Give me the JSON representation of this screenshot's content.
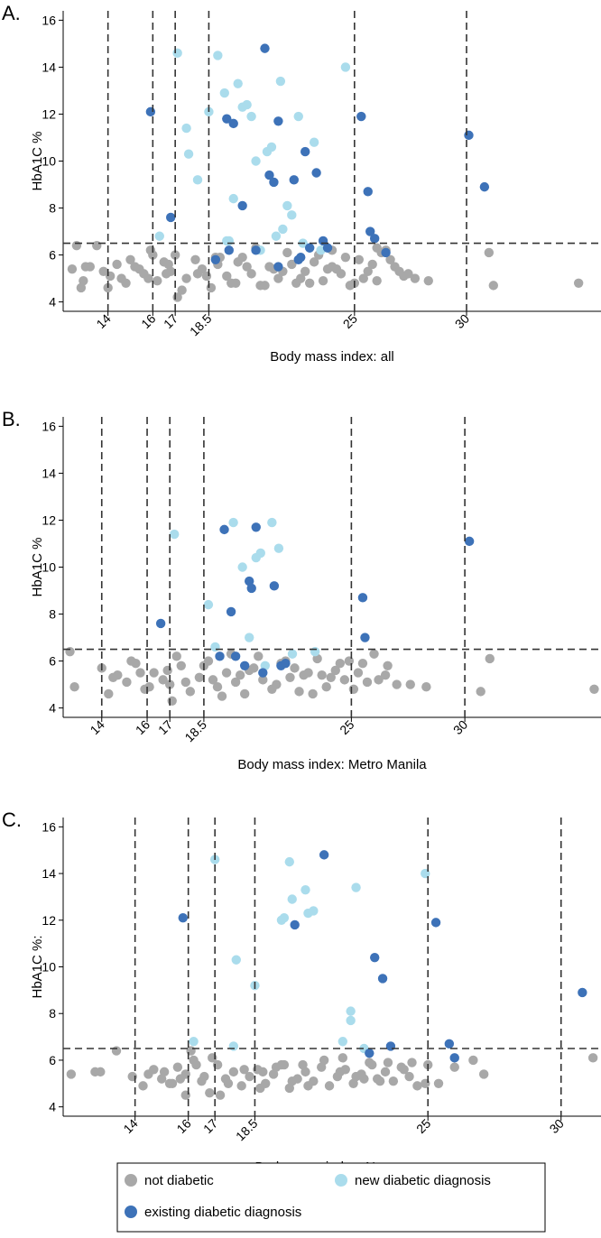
{
  "chart_data": [
    {
      "type": "scatter",
      "panel_label": "A.",
      "xlabel": "Body mass index: all",
      "ylabel": "HbA1C %",
      "xticks": [
        14,
        16,
        17,
        18.5,
        25,
        30
      ],
      "yticks": [
        4,
        6,
        8,
        10,
        12,
        14,
        16
      ],
      "xlim": [
        12,
        36
      ],
      "ylim": [
        3.6,
        16.4
      ],
      "grid": false,
      "reference_lines": {
        "x": [
          14,
          16,
          17,
          18.5,
          25,
          30
        ],
        "y": [
          6.5
        ]
      },
      "series": [
        {
          "name": "not diabetic",
          "color": "#a8a8a8",
          "x": [
            12.4,
            12.6,
            12.9,
            13.2,
            13.5,
            14.1,
            14.4,
            14.8,
            15.2,
            15.6,
            15.9,
            16.2,
            16.5,
            16.8,
            17.1,
            17.5,
            17.9,
            18.2,
            18.6,
            18.9,
            19.3,
            19.7,
            20.0,
            20.4,
            20.8,
            21.2,
            21.6,
            22.0,
            22.4,
            22.8,
            23.2,
            23.6,
            24.0,
            24.4,
            24.8,
            25.2,
            25.6,
            26.0,
            26.4,
            26.8,
            27.2,
            27.7,
            28.3,
            31.0,
            31.2,
            35.0,
            14.0,
            14.6,
            15.4,
            16.0,
            16.7,
            17.3,
            18.0,
            18.8,
            19.5,
            20.2,
            21.0,
            21.8,
            22.6,
            23.4,
            24.2,
            25.0,
            25.8,
            26.6,
            27.4,
            13.8,
            15.0,
            17.0,
            19.0,
            21.4,
            23.0,
            24.6,
            26.2,
            15.8,
            18.4,
            20.6,
            22.2,
            24.0,
            25.4,
            27.0,
            16.6,
            19.8,
            23.8,
            13.0,
            12.8,
            26.0
          ],
          "y": [
            5.4,
            6.4,
            4.9,
            5.5,
            6.4,
            5.1,
            5.6,
            4.8,
            5.5,
            5.2,
            6.2,
            4.9,
            5.7,
            5.3,
            4.2,
            5.0,
            5.8,
            5.4,
            4.6,
            5.6,
            5.1,
            4.8,
            5.9,
            5.2,
            4.7,
            5.5,
            5.0,
            6.1,
            4.8,
            5.3,
            5.7,
            4.9,
            5.5,
            5.2,
            4.7,
            5.8,
            5.3,
            4.9,
            6.2,
            5.5,
            5.1,
            5.0,
            4.9,
            6.1,
            4.7,
            4.8,
            4.6,
            5.0,
            5.4,
            6.0,
            5.6,
            4.5,
            5.2,
            5.9,
            4.8,
            5.5,
            4.7,
            5.3,
            5.0,
            6.0,
            5.4,
            4.8,
            5.6,
            5.8,
            5.2,
            5.3,
            5.8,
            6.0,
            5.9,
            5.4,
            4.8,
            5.9,
            6.1,
            5.0,
            5.1,
            6.3,
            5.6,
            6.2,
            5.0,
            5.3,
            5.2,
            5.7,
            5.4,
            5.5,
            4.6,
            6.3
          ]
        },
        {
          "name": "new diabetic diagnosis",
          "color": "#aadcec",
          "x": [
            17.1,
            16.3,
            17.5,
            17.6,
            18.0,
            18.5,
            18.9,
            19.2,
            19.4,
            19.6,
            19.8,
            20.0,
            20.2,
            20.4,
            20.6,
            20.8,
            21.1,
            21.3,
            21.5,
            21.7,
            22.0,
            22.2,
            22.5,
            22.7,
            23.0,
            23.2,
            23.5,
            24.6,
            19.3,
            21.8
          ],
          "y": [
            14.6,
            6.8,
            11.4,
            10.3,
            9.2,
            12.1,
            14.5,
            12.9,
            6.6,
            8.4,
            13.3,
            12.3,
            12.4,
            11.9,
            10.0,
            6.2,
            10.4,
            10.6,
            6.8,
            13.4,
            8.1,
            7.7,
            11.9,
            6.5,
            6.3,
            10.8,
            6.2,
            14.0,
            6.6,
            7.1
          ]
        },
        {
          "name": "existing diabetic diagnosis",
          "color": "#3d72b8",
          "x": [
            15.9,
            16.8,
            19.3,
            19.4,
            19.6,
            20.0,
            21.0,
            21.2,
            21.4,
            21.6,
            22.3,
            22.5,
            22.8,
            23.0,
            23.3,
            23.6,
            25.3,
            25.6,
            25.7,
            25.9,
            26.4,
            30.1,
            30.8,
            18.8,
            21.6,
            20.6,
            22.6,
            23.8
          ],
          "y": [
            12.1,
            7.6,
            11.8,
            6.2,
            11.6,
            8.1,
            14.8,
            9.4,
            9.1,
            11.7,
            9.2,
            5.8,
            10.4,
            6.3,
            9.5,
            6.6,
            11.9,
            8.7,
            7.0,
            6.7,
            6.1,
            11.1,
            8.9,
            5.8,
            5.5,
            6.2,
            5.9,
            6.3
          ]
        }
      ]
    },
    {
      "type": "scatter",
      "panel_label": "B.",
      "xlabel": "Body mass index: Metro Manila",
      "ylabel": "HbA1C %",
      "xticks": [
        14,
        16,
        17,
        18.5,
        25,
        30
      ],
      "yticks": [
        4,
        6,
        8,
        10,
        12,
        14,
        16
      ],
      "xlim": [
        12.3,
        36
      ],
      "ylim": [
        3.6,
        16.4
      ],
      "grid": false,
      "reference_lines": {
        "x": [
          14,
          16,
          17,
          18.5,
          25,
          30
        ],
        "y": [
          6.5
        ]
      },
      "series": [
        {
          "name": "not diabetic",
          "color": "#a8a8a8",
          "x": [
            12.6,
            12.8,
            14.0,
            14.3,
            14.7,
            15.1,
            15.5,
            15.9,
            16.3,
            16.7,
            17.1,
            17.5,
            17.9,
            18.3,
            18.7,
            19.1,
            19.5,
            19.9,
            20.3,
            20.7,
            21.1,
            21.5,
            21.9,
            22.3,
            22.7,
            23.1,
            23.5,
            23.9,
            24.3,
            24.7,
            25.1,
            25.5,
            26.0,
            26.5,
            27.0,
            27.6,
            28.3,
            30.7,
            31.1,
            35.7,
            14.5,
            15.3,
            16.1,
            16.9,
            17.7,
            18.5,
            19.3,
            20.1,
            20.9,
            21.7,
            22.5,
            23.3,
            24.1,
            24.9,
            25.7,
            26.6,
            15.7,
            17.3,
            18.9,
            20.5,
            22.1,
            23.7,
            25.3,
            17.0,
            19.7,
            22.9,
            24.5,
            26.2
          ],
          "y": [
            6.4,
            4.9,
            5.7,
            4.6,
            5.4,
            5.1,
            5.9,
            4.8,
            5.5,
            5.2,
            4.3,
            5.8,
            4.7,
            5.3,
            6.0,
            4.9,
            5.5,
            5.1,
            4.6,
            5.7,
            5.2,
            4.8,
            5.9,
            5.3,
            4.7,
            5.5,
            6.1,
            4.9,
            5.6,
            5.2,
            4.8,
            5.9,
            6.3,
            5.4,
            5.0,
            5.0,
            4.9,
            4.7,
            6.1,
            4.8,
            5.3,
            6.0,
            4.9,
            5.6,
            5.1,
            5.8,
            4.5,
            5.4,
            6.2,
            5.0,
            5.7,
            4.6,
            5.3,
            6.0,
            5.1,
            5.8,
            5.5,
            6.2,
            5.2,
            5.6,
            6.0,
            5.4,
            5.5,
            5.0,
            6.3,
            5.4,
            5.9,
            5.2
          ]
        },
        {
          "name": "new diabetic diagnosis",
          "color": "#aadcec",
          "x": [
            17.2,
            18.7,
            19.0,
            19.8,
            20.2,
            20.5,
            20.8,
            21.0,
            21.2,
            21.5,
            21.8,
            22.4,
            23.4
          ],
          "y": [
            11.4,
            8.4,
            6.6,
            11.9,
            10.0,
            7.0,
            10.4,
            10.6,
            5.8,
            11.9,
            10.8,
            6.3,
            6.4
          ]
        },
        {
          "name": "existing diabetic diagnosis",
          "color": "#3d72b8",
          "x": [
            16.6,
            19.2,
            19.4,
            19.7,
            20.3,
            20.5,
            20.6,
            20.8,
            21.1,
            21.6,
            21.9,
            25.5,
            25.6,
            30.2,
            22.1,
            19.9
          ],
          "y": [
            7.6,
            6.2,
            11.6,
            8.1,
            5.8,
            9.4,
            9.1,
            11.7,
            5.5,
            9.2,
            5.8,
            8.7,
            7.0,
            11.1,
            5.9,
            6.2
          ]
        }
      ]
    },
    {
      "type": "scatter",
      "panel_label": "C.",
      "xlabel": "Body mass index: Negros",
      "ylabel": "HbA1C %:",
      "xticks": [
        14,
        16,
        17,
        18.5,
        25,
        30
      ],
      "yticks": [
        4,
        6,
        8,
        10,
        12,
        14,
        16
      ],
      "xlim": [
        11.3,
        31.5
      ],
      "ylim": [
        3.6,
        16.4
      ],
      "grid": false,
      "reference_lines": {
        "x": [
          14,
          16,
          17,
          18.5,
          25,
          30
        ],
        "y": [
          6.5
        ]
      },
      "series": [
        {
          "name": "not diabetic",
          "color": "#a8a8a8",
          "x": [
            11.6,
            12.5,
            12.7,
            13.3,
            13.9,
            14.3,
            14.7,
            15.0,
            15.3,
            15.6,
            15.9,
            16.2,
            16.5,
            16.8,
            17.1,
            17.4,
            17.7,
            18.0,
            18.3,
            18.6,
            18.9,
            19.2,
            19.5,
            19.8,
            20.1,
            20.4,
            20.7,
            21.0,
            21.3,
            21.6,
            21.9,
            22.2,
            22.5,
            22.8,
            23.1,
            23.4,
            23.7,
            24.0,
            24.3,
            24.6,
            25.0,
            25.4,
            26.0,
            26.7,
            27.1,
            31.2,
            14.5,
            15.1,
            15.7,
            16.3,
            16.9,
            17.5,
            18.1,
            18.7,
            19.3,
            19.9,
            20.5,
            21.1,
            21.7,
            22.3,
            22.9,
            23.5,
            24.1,
            24.9,
            15.9,
            17.2,
            18.8,
            20.3,
            21.8,
            23.2,
            24.4,
            16.6,
            19.6,
            22.6,
            16.1,
            15.4
          ],
          "y": [
            5.4,
            5.5,
            5.5,
            6.4,
            5.3,
            4.9,
            5.6,
            5.2,
            5.0,
            5.7,
            5.4,
            6.0,
            5.1,
            4.6,
            5.8,
            5.2,
            5.5,
            4.9,
            5.3,
            5.6,
            5.0,
            5.4,
            5.8,
            4.8,
            5.2,
            5.5,
            5.1,
            5.7,
            4.9,
            5.3,
            5.6,
            5.0,
            5.4,
            5.9,
            5.2,
            5.5,
            5.1,
            5.7,
            5.3,
            4.9,
            5.8,
            5.0,
            5.7,
            6.0,
            5.4,
            6.1,
            5.4,
            5.5,
            5.2,
            5.8,
            6.1,
            5.0,
            5.6,
            4.8,
            5.7,
            5.1,
            4.9,
            6.0,
            5.5,
            5.3,
            5.8,
            5.9,
            5.6,
            5.0,
            4.5,
            4.5,
            5.5,
            5.8,
            6.1,
            5.1,
            5.9,
            5.3,
            5.8,
            5.2,
            6.4,
            5.0
          ]
        },
        {
          "name": "new diabetic diagnosis",
          "color": "#aadcec",
          "x": [
            17.0,
            16.2,
            17.8,
            17.7,
            18.5,
            19.6,
            19.8,
            19.9,
            20.4,
            20.5,
            20.7,
            22.1,
            22.1,
            21.8,
            22.3,
            24.9,
            22.6,
            19.5
          ],
          "y": [
            14.6,
            6.8,
            10.3,
            6.6,
            9.2,
            12.1,
            14.5,
            12.9,
            13.3,
            12.3,
            12.4,
            8.1,
            7.7,
            6.8,
            13.4,
            14.0,
            6.5,
            12.0
          ]
        },
        {
          "name": "existing diabetic diagnosis",
          "color": "#3d72b8",
          "x": [
            15.8,
            20.0,
            21.1,
            23.0,
            23.3,
            23.6,
            25.3,
            25.8,
            26.0,
            30.8,
            22.8
          ],
          "y": [
            12.1,
            11.8,
            14.8,
            10.4,
            9.5,
            6.6,
            11.9,
            6.7,
            6.1,
            8.9,
            6.3
          ]
        }
      ]
    }
  ],
  "legend": {
    "placement": "bottom",
    "items": [
      {
        "label": "not diabetic",
        "color": "#a8a8a8"
      },
      {
        "label": "new diabetic diagnosis",
        "color": "#aadcec"
      },
      {
        "label": "existing diabetic diagnosis",
        "color": "#3d72b8"
      }
    ]
  }
}
